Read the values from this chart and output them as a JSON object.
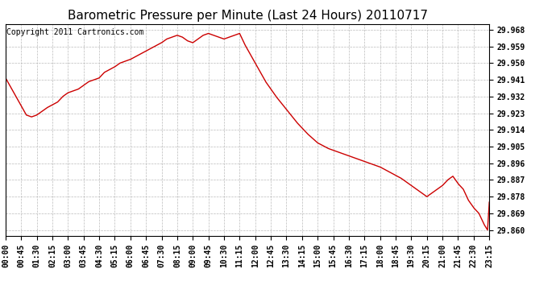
{
  "title": "Barometric Pressure per Minute (Last 24 Hours) 20110717",
  "copyright": "Copyright 2011 Cartronics.com",
  "line_color": "#cc0000",
  "bg_color": "#ffffff",
  "plot_bg_color": "#ffffff",
  "grid_color": "#bbbbbb",
  "ylim": [
    29.857,
    29.971
  ],
  "yticks": [
    29.86,
    29.869,
    29.878,
    29.887,
    29.896,
    29.905,
    29.914,
    29.923,
    29.932,
    29.941,
    29.95,
    29.959,
    29.968
  ],
  "xtick_labels": [
    "00:00",
    "00:45",
    "01:30",
    "02:15",
    "03:00",
    "03:45",
    "04:30",
    "05:15",
    "06:00",
    "06:45",
    "07:30",
    "08:15",
    "09:00",
    "09:45",
    "10:30",
    "11:15",
    "12:00",
    "12:45",
    "13:30",
    "14:15",
    "15:00",
    "15:45",
    "16:30",
    "17:15",
    "18:00",
    "18:45",
    "19:30",
    "20:15",
    "21:00",
    "21:45",
    "22:30",
    "23:15"
  ],
  "title_fontsize": 11,
  "tick_fontsize": 7,
  "copyright_fontsize": 7,
  "line_width": 1.0,
  "keypoints_x": [
    0,
    30,
    60,
    75,
    90,
    105,
    120,
    150,
    165,
    180,
    210,
    225,
    240,
    270,
    285,
    315,
    330,
    360,
    390,
    420,
    450,
    465,
    480,
    495,
    510,
    525,
    540,
    555,
    570,
    585,
    600,
    615,
    630,
    645,
    660,
    675,
    690,
    720,
    750,
    780,
    810,
    840,
    870,
    900,
    930,
    960,
    990,
    1020,
    1050,
    1080,
    1110,
    1140,
    1155,
    1170,
    1185,
    1200,
    1215,
    1230,
    1245,
    1260,
    1275,
    1290,
    1305,
    1320,
    1335,
    1350,
    1365,
    1380,
    1390,
    1395
  ],
  "keypoints_y": [
    29.942,
    29.932,
    29.922,
    29.921,
    29.922,
    29.924,
    29.926,
    29.929,
    29.932,
    29.934,
    29.936,
    29.938,
    29.94,
    29.942,
    29.945,
    29.948,
    29.95,
    29.952,
    29.955,
    29.958,
    29.961,
    29.963,
    29.964,
    29.965,
    29.964,
    29.962,
    29.961,
    29.963,
    29.965,
    29.966,
    29.965,
    29.964,
    29.963,
    29.964,
    29.965,
    29.966,
    29.96,
    29.95,
    29.94,
    29.932,
    29.925,
    29.918,
    29.912,
    29.907,
    29.904,
    29.902,
    29.9,
    29.898,
    29.896,
    29.894,
    29.891,
    29.888,
    29.886,
    29.884,
    29.882,
    29.88,
    29.878,
    29.88,
    29.882,
    29.884,
    29.887,
    29.889,
    29.885,
    29.882,
    29.876,
    29.872,
    29.869,
    29.863,
    29.86,
    29.875
  ]
}
